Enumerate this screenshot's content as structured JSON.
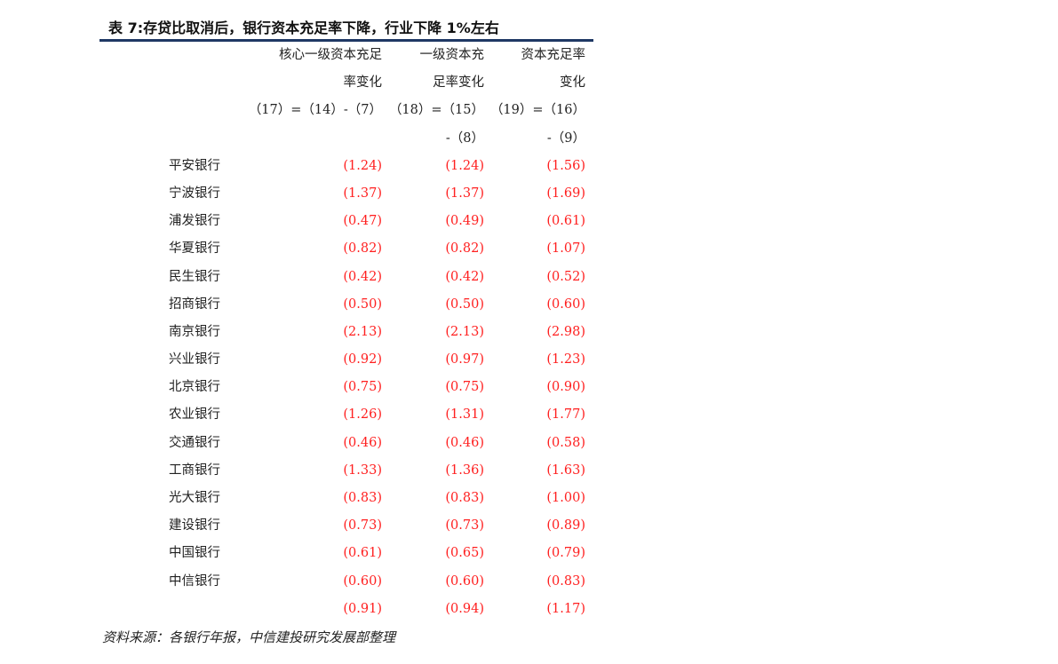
{
  "title": "表 7:存贷比取消后，银行资本充足率下降，行业下降 1%左右",
  "header": {
    "col1": [
      "核心一级资本充足",
      "率变化",
      "（17）=（14）-（7）",
      ""
    ],
    "col2": [
      "一级资本充",
      "足率变化",
      "（18）=（15）",
      "-（8）"
    ],
    "col3": [
      "资本充足率",
      "变化",
      "（19）=（16）",
      "-（9）"
    ]
  },
  "rows": [
    {
      "name": "平安银行",
      "v1": "(1.24)",
      "v2": "(1.24)",
      "v3": "(1.56)"
    },
    {
      "name": "宁波银行",
      "v1": "(1.37)",
      "v2": "(1.37)",
      "v3": "(1.69)"
    },
    {
      "name": "浦发银行",
      "v1": "(0.47)",
      "v2": "(0.49)",
      "v3": "(0.61)"
    },
    {
      "name": "华夏银行",
      "v1": "(0.82)",
      "v2": "(0.82)",
      "v3": "(1.07)"
    },
    {
      "name": "民生银行",
      "v1": "(0.42)",
      "v2": "(0.42)",
      "v3": "(0.52)"
    },
    {
      "name": "招商银行",
      "v1": "(0.50)",
      "v2": "(0.50)",
      "v3": "(0.60)"
    },
    {
      "name": "南京银行",
      "v1": "(2.13)",
      "v2": "(2.13)",
      "v3": "(2.98)"
    },
    {
      "name": "兴业银行",
      "v1": "(0.92)",
      "v2": "(0.97)",
      "v3": "(1.23)"
    },
    {
      "name": "北京银行",
      "v1": "(0.75)",
      "v2": "(0.75)",
      "v3": "(0.90)"
    },
    {
      "name": "农业银行",
      "v1": "(1.26)",
      "v2": "(1.31)",
      "v3": "(1.77)"
    },
    {
      "name": "交通银行",
      "v1": "(0.46)",
      "v2": "(0.46)",
      "v3": "(0.58)"
    },
    {
      "name": "工商银行",
      "v1": "(1.33)",
      "v2": "(1.36)",
      "v3": "(1.63)"
    },
    {
      "name": "光大银行",
      "v1": "(0.83)",
      "v2": "(0.83)",
      "v3": "(1.00)"
    },
    {
      "name": "建设银行",
      "v1": "(0.73)",
      "v2": "(0.73)",
      "v3": "(0.89)"
    },
    {
      "name": "中国银行",
      "v1": "(0.61)",
      "v2": "(0.65)",
      "v3": "(0.79)"
    },
    {
      "name": "中信银行",
      "v1": "(0.60)",
      "v2": "(0.60)",
      "v3": "(0.83)"
    },
    {
      "name": "",
      "v1": "(0.91)",
      "v2": "(0.94)",
      "v3": "(1.17)"
    }
  ],
  "colors": {
    "rule": "#1f3864",
    "value": "#ff2020"
  },
  "source": "资料来源：各银行年报，中信建投研究发展部整理"
}
